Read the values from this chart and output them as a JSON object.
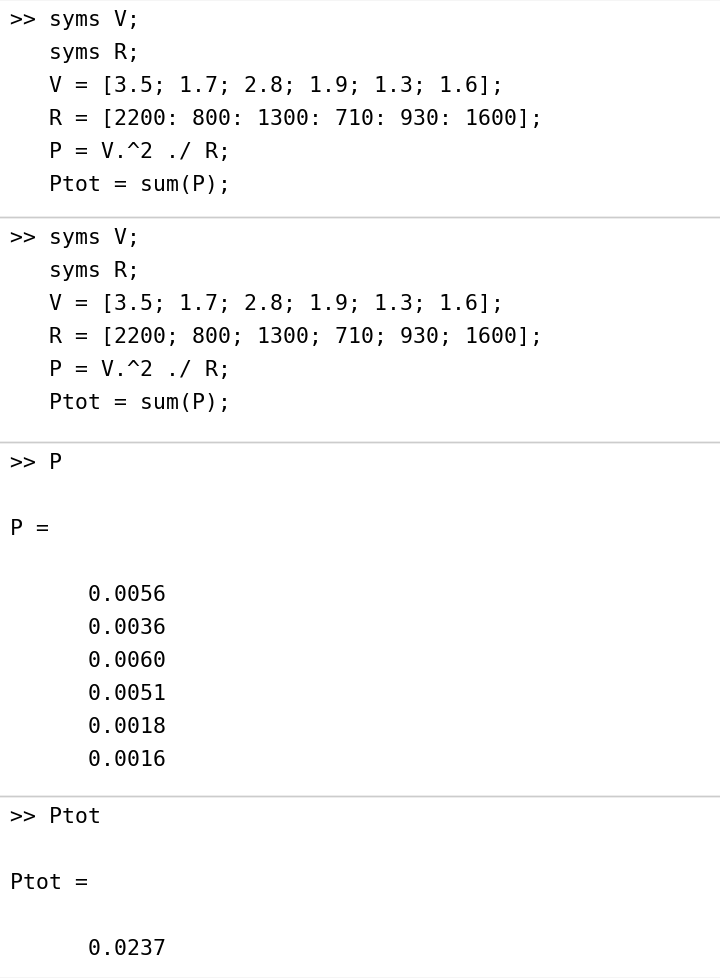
{
  "bg_color": "#ffffff",
  "cell_bg": "#ffffff",
  "border_color": "#cccccc",
  "text_color": "#000000",
  "font_size": 15.5,
  "fig_width": 7.2,
  "fig_height": 9.79,
  "dpi": 100,
  "cells": [
    {
      "lines": [
        ">> syms V;",
        "   syms R;",
        "   V = [3.5; 1.7; 2.8; 1.9; 1.3; 1.6];",
        "   R = [2200: 800: 1300: 710: 930: 1600];",
        "   P = V.^2 ./ R;",
        "   Ptot = sum(P);"
      ]
    },
    {
      "lines": [
        ">> syms V;",
        "   syms R;",
        "   V = [3.5; 1.7; 2.8; 1.9; 1.3; 1.6];",
        "   R = [2200; 800; 1300; 710; 930; 1600];",
        "   P = V.^2 ./ R;",
        "   Ptot = sum(P);"
      ]
    },
    {
      "lines": [
        ">> P",
        "",
        "P =",
        "",
        "      0.0056",
        "      0.0036",
        "      0.0060",
        "      0.0051",
        "      0.0018",
        "      0.0016"
      ]
    },
    {
      "lines": [
        ">> Ptot",
        "",
        "Ptot =",
        "",
        "      0.0237"
      ]
    }
  ]
}
